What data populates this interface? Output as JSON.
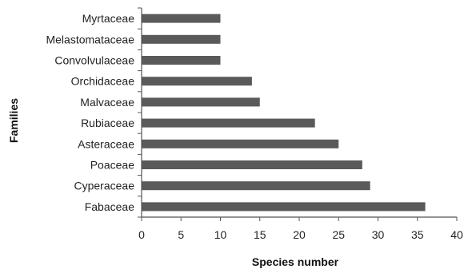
{
  "chart_data": {
    "type": "bar",
    "orientation": "horizontal",
    "categories": [
      "Fabaceae",
      "Cyperaceae",
      "Poaceae",
      "Asteraceae",
      "Rubiaceae",
      "Malvaceae",
      "Orchidaceae",
      "Convolvulaceae",
      "Melastomataceae",
      "Myrtaceae"
    ],
    "values": [
      36,
      29,
      28,
      25,
      22,
      15,
      14,
      10,
      10,
      10
    ],
    "xlabel": "Species number",
    "ylabel": "Families",
    "xlim": [
      0,
      40
    ],
    "xticks": [
      0,
      5,
      10,
      15,
      20,
      25,
      30,
      35,
      40
    ],
    "grid": false,
    "bar_color": "#5a5a5a"
  }
}
